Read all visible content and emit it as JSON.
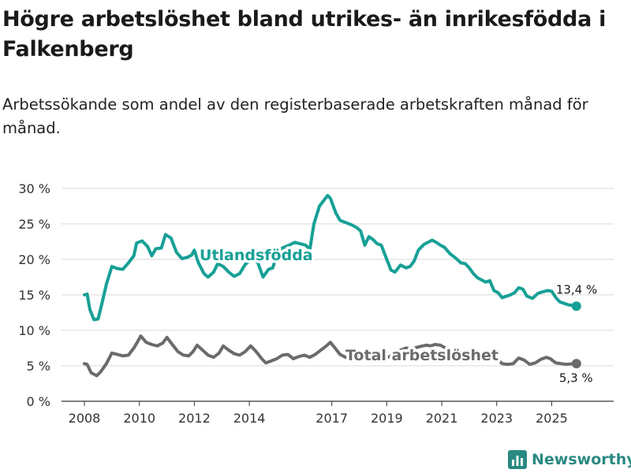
{
  "title": "Högre arbetslöshet bland utrikes- än inrikesfödda i Falkenberg",
  "subtitle": "Arbetssökande som andel av den registerbaserade arbetskraften månad för månad.",
  "brand": {
    "name": "Newsworthy",
    "icon": "bar-chart-logo-icon",
    "color": "#2a8a82"
  },
  "chart_data": {
    "type": "line",
    "title": "Högre arbetslöshet bland utrikes- än inrikesfödda i Falkenberg",
    "xlabel": "",
    "ylabel": "",
    "ylim": [
      0,
      30
    ],
    "xlim": [
      2007.55,
      2026.3
    ],
    "grid": true,
    "y_ticks": [
      0,
      5,
      10,
      15,
      20,
      25,
      30
    ],
    "y_tick_labels": [
      "0 %",
      "5 %",
      "10 %",
      "15 %",
      "20 %",
      "25 %",
      "30 %"
    ],
    "x_ticks": [
      2008,
      2010,
      2012,
      2014,
      2017,
      2019,
      2021,
      2023,
      2025
    ],
    "x_tick_labels": [
      "2008",
      "2010",
      "2012",
      "2014",
      "2017",
      "2019",
      "2021",
      "2023",
      "2025"
    ],
    "series": [
      {
        "name": "Utlandsfödda",
        "color": "#17a096",
        "end_label": "13,4 %",
        "points": [
          [
            2008.0,
            15.0
          ],
          [
            2008.1,
            15.1
          ],
          [
            2008.2,
            12.9
          ],
          [
            2008.35,
            11.5
          ],
          [
            2008.5,
            11.6
          ],
          [
            2008.65,
            14.0
          ],
          [
            2008.8,
            16.5
          ],
          [
            2009.0,
            19.0
          ],
          [
            2009.2,
            18.7
          ],
          [
            2009.4,
            18.6
          ],
          [
            2009.6,
            19.5
          ],
          [
            2009.8,
            20.5
          ],
          [
            2009.9,
            22.3
          ],
          [
            2010.1,
            22.6
          ],
          [
            2010.3,
            21.8
          ],
          [
            2010.45,
            20.5
          ],
          [
            2010.6,
            21.5
          ],
          [
            2010.8,
            21.6
          ],
          [
            2010.95,
            23.5
          ],
          [
            2011.15,
            23.0
          ],
          [
            2011.35,
            21.0
          ],
          [
            2011.55,
            20.1
          ],
          [
            2011.75,
            20.3
          ],
          [
            2011.9,
            20.6
          ],
          [
            2012.0,
            21.3
          ],
          [
            2012.15,
            19.5
          ],
          [
            2012.35,
            18.0
          ],
          [
            2012.5,
            17.5
          ],
          [
            2012.7,
            18.2
          ],
          [
            2012.85,
            19.4
          ],
          [
            2013.05,
            19.0
          ],
          [
            2013.25,
            18.2
          ],
          [
            2013.45,
            17.6
          ],
          [
            2013.65,
            18.0
          ],
          [
            2013.85,
            19.3
          ],
          [
            2014.1,
            20.0
          ],
          [
            2014.3,
            19.6
          ],
          [
            2014.5,
            17.5
          ],
          [
            2014.7,
            18.6
          ],
          [
            2014.85,
            18.8
          ],
          [
            2015.0,
            20.5
          ],
          [
            2015.2,
            21.6
          ],
          [
            2015.45,
            22.0
          ],
          [
            2015.65,
            22.4
          ],
          [
            2015.85,
            22.2
          ],
          [
            2016.05,
            22.0
          ],
          [
            2016.2,
            21.4
          ],
          [
            2016.35,
            25.0
          ],
          [
            2016.55,
            27.5
          ],
          [
            2016.75,
            28.5
          ],
          [
            2016.85,
            29.0
          ],
          [
            2016.95,
            28.6
          ],
          [
            2017.15,
            26.5
          ],
          [
            2017.3,
            25.5
          ],
          [
            2017.5,
            25.2
          ],
          [
            2017.7,
            24.9
          ],
          [
            2017.9,
            24.5
          ],
          [
            2018.05,
            24.0
          ],
          [
            2018.2,
            22.0
          ],
          [
            2018.35,
            23.2
          ],
          [
            2018.5,
            22.8
          ],
          [
            2018.65,
            22.2
          ],
          [
            2018.8,
            22.0
          ],
          [
            2018.95,
            20.5
          ],
          [
            2019.15,
            18.5
          ],
          [
            2019.3,
            18.2
          ],
          [
            2019.5,
            19.2
          ],
          [
            2019.7,
            18.8
          ],
          [
            2019.85,
            19.0
          ],
          [
            2020.0,
            19.8
          ],
          [
            2020.15,
            21.3
          ],
          [
            2020.35,
            22.1
          ],
          [
            2020.5,
            22.4
          ],
          [
            2020.65,
            22.7
          ],
          [
            2020.8,
            22.4
          ],
          [
            2020.95,
            22.0
          ],
          [
            2021.1,
            21.7
          ],
          [
            2021.3,
            20.8
          ],
          [
            2021.5,
            20.2
          ],
          [
            2021.7,
            19.5
          ],
          [
            2021.85,
            19.4
          ],
          [
            2022.0,
            18.8
          ],
          [
            2022.15,
            18.0
          ],
          [
            2022.3,
            17.4
          ],
          [
            2022.45,
            17.1
          ],
          [
            2022.6,
            16.8
          ],
          [
            2022.75,
            17.0
          ],
          [
            2022.9,
            15.6
          ],
          [
            2023.05,
            15.3
          ],
          [
            2023.2,
            14.6
          ],
          [
            2023.35,
            14.8
          ],
          [
            2023.5,
            15.0
          ],
          [
            2023.65,
            15.3
          ],
          [
            2023.8,
            16.0
          ],
          [
            2023.95,
            15.8
          ],
          [
            2024.1,
            14.8
          ],
          [
            2024.3,
            14.5
          ],
          [
            2024.5,
            15.2
          ],
          [
            2024.65,
            15.4
          ],
          [
            2024.85,
            15.6
          ],
          [
            2025.0,
            15.5
          ],
          [
            2025.15,
            14.6
          ],
          [
            2025.3,
            14.0
          ],
          [
            2025.45,
            13.8
          ],
          [
            2025.6,
            13.6
          ],
          [
            2025.75,
            13.5
          ],
          [
            2025.9,
            13.4
          ]
        ]
      },
      {
        "name": "Total arbetslöshet",
        "color": "#6b6b6b",
        "end_label": "5,3 %",
        "points": [
          [
            2008.0,
            5.3
          ],
          [
            2008.1,
            5.2
          ],
          [
            2008.25,
            4.0
          ],
          [
            2008.45,
            3.6
          ],
          [
            2008.6,
            4.2
          ],
          [
            2008.8,
            5.3
          ],
          [
            2009.0,
            6.8
          ],
          [
            2009.2,
            6.6
          ],
          [
            2009.4,
            6.4
          ],
          [
            2009.6,
            6.5
          ],
          [
            2009.8,
            7.5
          ],
          [
            2009.95,
            8.5
          ],
          [
            2010.05,
            9.2
          ],
          [
            2010.25,
            8.3
          ],
          [
            2010.45,
            8.0
          ],
          [
            2010.65,
            7.8
          ],
          [
            2010.85,
            8.2
          ],
          [
            2011.0,
            9.0
          ],
          [
            2011.2,
            8.0
          ],
          [
            2011.4,
            7.0
          ],
          [
            2011.6,
            6.5
          ],
          [
            2011.8,
            6.4
          ],
          [
            2011.95,
            7.0
          ],
          [
            2012.1,
            7.9
          ],
          [
            2012.3,
            7.2
          ],
          [
            2012.5,
            6.5
          ],
          [
            2012.7,
            6.2
          ],
          [
            2012.9,
            6.8
          ],
          [
            2013.05,
            7.8
          ],
          [
            2013.25,
            7.2
          ],
          [
            2013.45,
            6.7
          ],
          [
            2013.65,
            6.5
          ],
          [
            2013.85,
            7.0
          ],
          [
            2014.05,
            7.8
          ],
          [
            2014.25,
            7.0
          ],
          [
            2014.45,
            6.0
          ],
          [
            2014.6,
            5.4
          ],
          [
            2014.8,
            5.7
          ],
          [
            2015.0,
            6.0
          ],
          [
            2015.2,
            6.5
          ],
          [
            2015.4,
            6.6
          ],
          [
            2015.6,
            6.0
          ],
          [
            2015.8,
            6.3
          ],
          [
            2016.0,
            6.5
          ],
          [
            2016.2,
            6.2
          ],
          [
            2016.4,
            6.6
          ],
          [
            2016.6,
            7.2
          ],
          [
            2016.8,
            7.8
          ],
          [
            2016.95,
            8.3
          ],
          [
            2017.1,
            7.6
          ],
          [
            2017.3,
            6.6
          ],
          [
            2017.5,
            6.2
          ],
          [
            2017.7,
            6.0
          ],
          [
            2017.9,
            6.1
          ],
          [
            2018.1,
            6.5
          ],
          [
            2018.3,
            6.2
          ],
          [
            2018.5,
            6.0
          ],
          [
            2018.7,
            5.8
          ],
          [
            2018.9,
            6.0
          ],
          [
            2019.1,
            6.3
          ],
          [
            2019.3,
            6.8
          ],
          [
            2019.5,
            7.2
          ],
          [
            2019.7,
            7.5
          ],
          [
            2019.9,
            7.4
          ],
          [
            2020.1,
            7.6
          ],
          [
            2020.3,
            7.8
          ],
          [
            2020.45,
            7.9
          ],
          [
            2020.6,
            7.8
          ],
          [
            2020.75,
            8.0
          ],
          [
            2020.95,
            7.9
          ],
          [
            2021.1,
            7.6
          ],
          [
            2021.3,
            7.0
          ],
          [
            2021.5,
            6.6
          ],
          [
            2021.7,
            6.3
          ],
          [
            2021.9,
            6.1
          ],
          [
            2022.1,
            5.9
          ],
          [
            2022.3,
            5.8
          ],
          [
            2022.5,
            5.8
          ],
          [
            2022.7,
            5.9
          ],
          [
            2022.9,
            6.0
          ],
          [
            2023.05,
            5.8
          ],
          [
            2023.2,
            5.3
          ],
          [
            2023.4,
            5.2
          ],
          [
            2023.6,
            5.3
          ],
          [
            2023.8,
            6.1
          ],
          [
            2024.0,
            5.8
          ],
          [
            2024.2,
            5.2
          ],
          [
            2024.4,
            5.4
          ],
          [
            2024.6,
            5.9
          ],
          [
            2024.8,
            6.2
          ],
          [
            2024.95,
            6.0
          ],
          [
            2025.15,
            5.4
          ],
          [
            2025.35,
            5.3
          ],
          [
            2025.55,
            5.2
          ],
          [
            2025.75,
            5.3
          ],
          [
            2025.9,
            5.3
          ]
        ]
      }
    ]
  }
}
